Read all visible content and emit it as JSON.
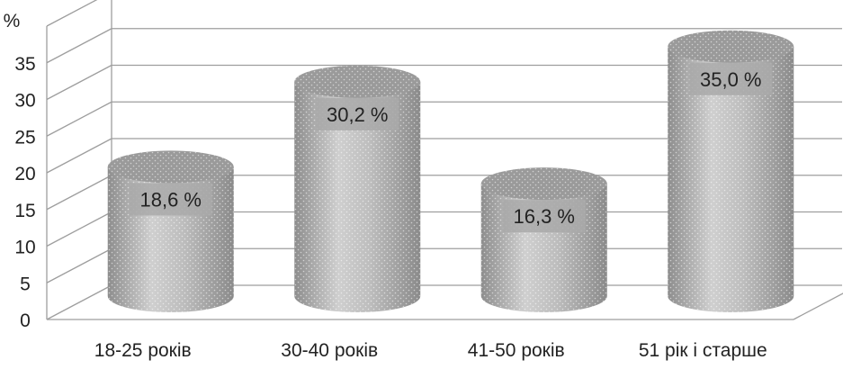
{
  "chart_data": {
    "type": "bar",
    "style": "3d-cylinder",
    "ylabel": "%",
    "ylim": [
      0,
      35
    ],
    "yticks": [
      "0",
      "5",
      "10",
      "15",
      "20",
      "25",
      "30",
      "35"
    ],
    "grid": true,
    "legend": "none",
    "categories": [
      "18-25 років",
      "30-40 років",
      "41-50 років",
      "51 рік і старше"
    ],
    "values": [
      18.6,
      30.2,
      16.3,
      35.0
    ],
    "data_labels": [
      "18,6 %",
      "30,2 %",
      "16,3 %",
      "35,0 %"
    ],
    "colors": {
      "bar": "#b4b4b4",
      "bar_dark": "#8a8a8a",
      "bar_light": "#d6d6d6",
      "top": "#9a9a9a",
      "label_bg": "#a9a9a9",
      "grid": "#9e9e9e",
      "text": "#222222"
    }
  }
}
